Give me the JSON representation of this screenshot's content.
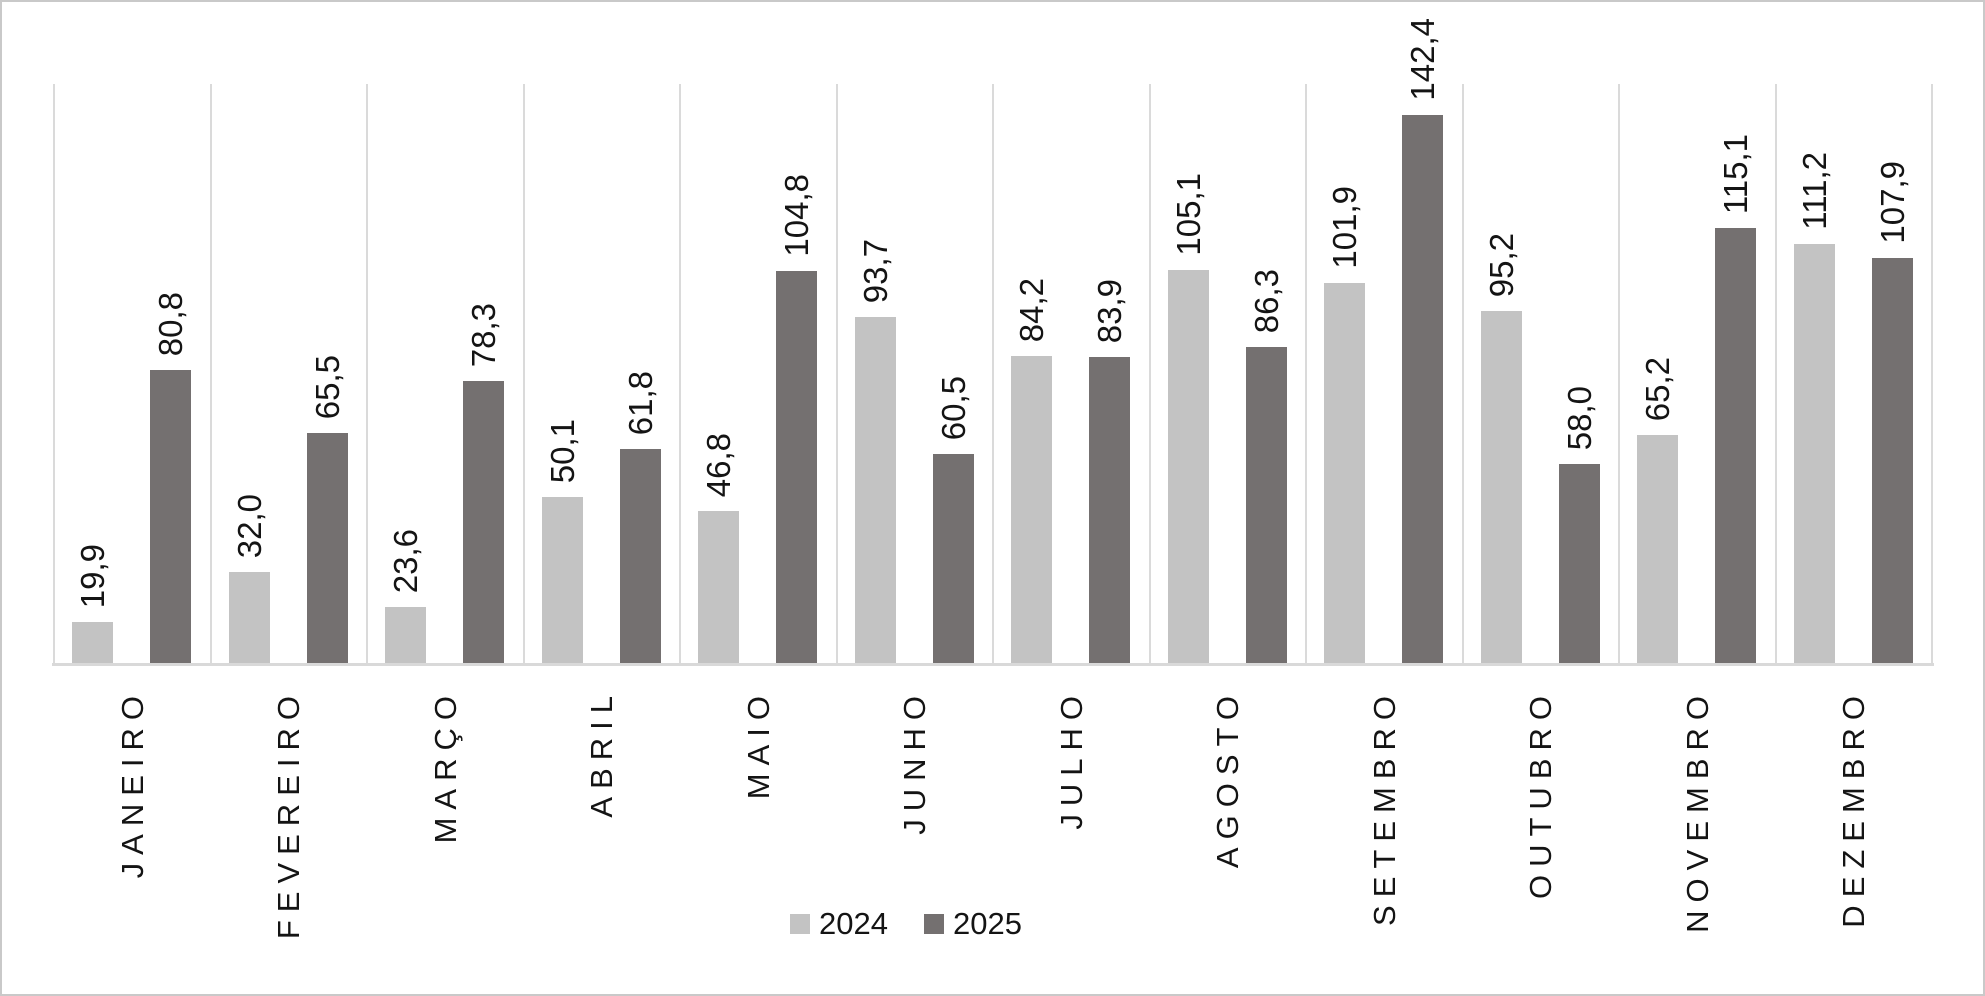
{
  "chart_data": {
    "type": "bar",
    "title": "",
    "categories": [
      "JANEIRO",
      "FEVEREIRO",
      "MARÇO",
      "ABRIL",
      "MAIO",
      "JUNHO",
      "JULHO",
      "AGOSTO",
      "SETEMBRO",
      "OUTUBRO",
      "NOVEMBRO",
      "DEZEMBRO"
    ],
    "series": [
      {
        "name": "2024",
        "color": "#c3c3c3",
        "values": [
          19.9,
          32.0,
          23.6,
          50.1,
          46.8,
          93.7,
          84.2,
          105.1,
          101.9,
          95.2,
          65.2,
          111.2
        ]
      },
      {
        "name": "2025",
        "color": "#747070",
        "values": [
          80.8,
          65.5,
          78.3,
          61.8,
          104.8,
          60.5,
          83.9,
          86.3,
          142.4,
          58.0,
          115.1,
          107.9
        ]
      }
    ],
    "value_labels": {
      "2024": [
        "19,9",
        "32,0",
        "23,6",
        "50,1",
        "46,8",
        "93,7",
        "84,2",
        "105,1",
        "101,9",
        "95,2",
        "65,2",
        "111,2"
      ],
      "2025": [
        "80,8",
        "65,5",
        "78,3",
        "61,8",
        "104,8",
        "60,5",
        "83,9",
        "86,3",
        "142,4",
        "58,0",
        "115,1",
        "107,9"
      ]
    },
    "xlabel": "",
    "ylabel": "",
    "ylim": [
      10,
      150
    ],
    "grid": "vertical-category-boundary-lines",
    "legend_position": "bottom",
    "label_rotation_degrees": 90,
    "colors": {
      "gridline": "#dadada",
      "axis_line": "#d9d9d9",
      "text": "#141414",
      "background": "#ffffff",
      "frame_border": "#c9c9c9"
    }
  }
}
